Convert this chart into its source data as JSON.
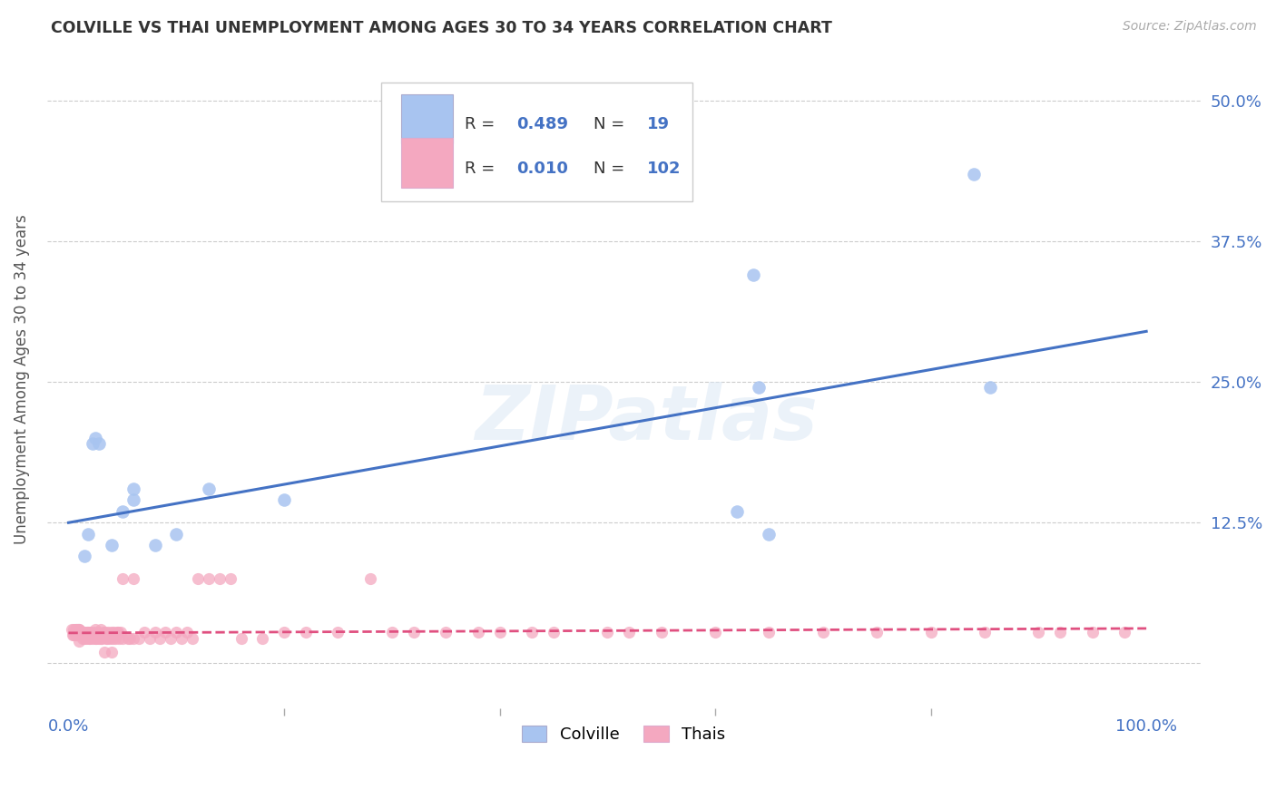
{
  "title": "COLVILLE VS THAI UNEMPLOYMENT AMONG AGES 30 TO 34 YEARS CORRELATION CHART",
  "source": "Source: ZipAtlas.com",
  "ylabel": "Unemployment Among Ages 30 to 34 years",
  "watermark": "ZIPatlas",
  "colville_R": 0.489,
  "colville_N": 19,
  "thai_R": 0.01,
  "thai_N": 102,
  "colville_color": "#a8c4f0",
  "thai_color": "#f4a8c0",
  "colville_line_color": "#4472c4",
  "thai_line_color": "#e05080",
  "legend_text_color": "#4472c4",
  "label_color": "#4472c4",
  "colville_x": [
    0.015,
    0.018,
    0.022,
    0.025,
    0.028,
    0.04,
    0.05,
    0.06,
    0.06,
    0.08,
    0.1,
    0.13,
    0.2,
    0.62,
    0.635,
    0.64,
    0.65,
    0.84,
    0.855
  ],
  "colville_y": [
    0.095,
    0.115,
    0.195,
    0.2,
    0.195,
    0.105,
    0.135,
    0.145,
    0.155,
    0.105,
    0.115,
    0.155,
    0.145,
    0.135,
    0.345,
    0.245,
    0.115,
    0.435,
    0.245
  ],
  "thai_x": [
    0.003,
    0.004,
    0.005,
    0.005,
    0.006,
    0.006,
    0.007,
    0.007,
    0.008,
    0.008,
    0.009,
    0.009,
    0.01,
    0.01,
    0.01,
    0.01,
    0.01,
    0.012,
    0.013,
    0.014,
    0.015,
    0.015,
    0.016,
    0.017,
    0.018,
    0.019,
    0.02,
    0.02,
    0.021,
    0.022,
    0.023,
    0.025,
    0.025,
    0.026,
    0.027,
    0.028,
    0.03,
    0.03,
    0.031,
    0.032,
    0.033,
    0.034,
    0.035,
    0.036,
    0.037,
    0.038,
    0.04,
    0.04,
    0.041,
    0.042,
    0.043,
    0.045,
    0.046,
    0.047,
    0.048,
    0.05,
    0.05,
    0.055,
    0.057,
    0.06,
    0.06,
    0.065,
    0.07,
    0.075,
    0.08,
    0.085,
    0.09,
    0.095,
    0.1,
    0.105,
    0.11,
    0.115,
    0.12,
    0.13,
    0.14,
    0.15,
    0.16,
    0.18,
    0.2,
    0.22,
    0.25,
    0.28,
    0.3,
    0.32,
    0.35,
    0.38,
    0.4,
    0.43,
    0.45,
    0.5,
    0.52,
    0.55,
    0.6,
    0.65,
    0.7,
    0.75,
    0.8,
    0.85,
    0.9,
    0.92,
    0.95,
    0.98
  ],
  "thai_y": [
    0.03,
    0.025,
    0.03,
    0.025,
    0.03,
    0.025,
    0.03,
    0.025,
    0.03,
    0.025,
    0.03,
    0.025,
    0.03,
    0.025,
    0.03,
    0.025,
    0.02,
    0.028,
    0.022,
    0.028,
    0.022,
    0.028,
    0.022,
    0.028,
    0.028,
    0.022,
    0.028,
    0.022,
    0.028,
    0.022,
    0.028,
    0.03,
    0.022,
    0.022,
    0.028,
    0.022,
    0.03,
    0.022,
    0.022,
    0.028,
    0.01,
    0.028,
    0.022,
    0.022,
    0.028,
    0.022,
    0.028,
    0.01,
    0.022,
    0.028,
    0.022,
    0.028,
    0.028,
    0.022,
    0.028,
    0.022,
    0.075,
    0.022,
    0.022,
    0.022,
    0.075,
    0.022,
    0.028,
    0.022,
    0.028,
    0.022,
    0.028,
    0.022,
    0.028,
    0.022,
    0.028,
    0.022,
    0.075,
    0.075,
    0.075,
    0.075,
    0.022,
    0.022,
    0.028,
    0.028,
    0.028,
    0.075,
    0.028,
    0.028,
    0.028,
    0.028,
    0.028,
    0.028,
    0.028,
    0.028,
    0.028,
    0.028,
    0.028,
    0.028,
    0.028,
    0.028,
    0.028,
    0.028,
    0.028,
    0.028,
    0.028,
    0.028
  ],
  "colville_trend_x": [
    0.0,
    1.0
  ],
  "colville_trend_y": [
    0.125,
    0.295
  ],
  "thai_trend_x": [
    0.0,
    1.0
  ],
  "thai_trend_y": [
    0.027,
    0.031
  ],
  "xlim": [
    -0.02,
    1.05
  ],
  "ylim": [
    -0.04,
    0.545
  ],
  "yticks": [
    0.0,
    0.125,
    0.25,
    0.375,
    0.5
  ],
  "ytick_labels": [
    "",
    "12.5%",
    "25.0%",
    "37.5%",
    "50.0%"
  ],
  "xticks": [
    0.0,
    1.0
  ],
  "xtick_labels": [
    "0.0%",
    "100.0%"
  ],
  "minor_xticks": [
    0.2,
    0.4,
    0.6,
    0.8
  ],
  "background_color": "#ffffff",
  "grid_color": "#cccccc"
}
